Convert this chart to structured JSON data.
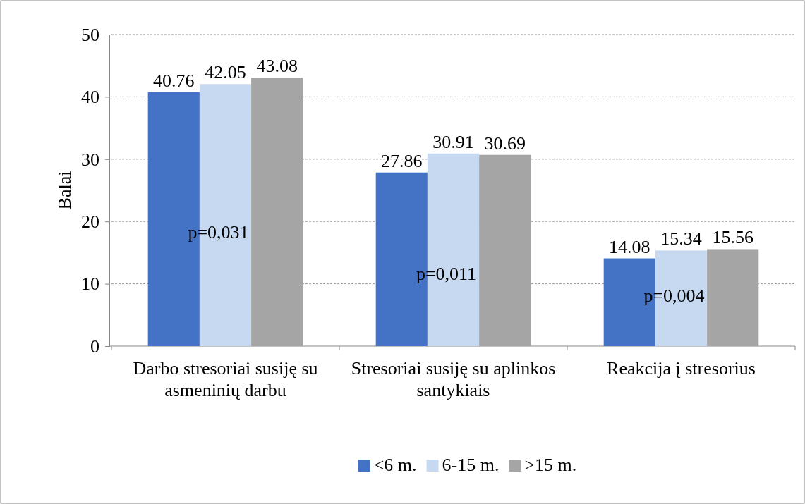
{
  "chart_data": {
    "type": "bar",
    "ylabel": "Balai",
    "categories": [
      "Darbo stresoriai susiję su asmeninių darbu",
      "Stresoriai susiję su aplinkos santykiais",
      "Reakcija į stresorius"
    ],
    "series": [
      {
        "name": "<6 m.",
        "color": "#4472c4",
        "values": [
          40.76,
          27.86,
          14.08
        ]
      },
      {
        "name": "6-15 m.",
        "color": "#c6d9f1",
        "values": [
          42.05,
          30.91,
          15.34
        ]
      },
      {
        "name": ">15 m.",
        "color": "#a5a5a5",
        "values": [
          43.08,
          30.69,
          15.56
        ]
      }
    ],
    "ylim": [
      0,
      50
    ],
    "yticks": [
      0,
      10,
      20,
      30,
      40,
      50
    ],
    "grid": "y",
    "legend": "bottom",
    "data_labels": true,
    "annotations": [
      "p=0,031",
      "p=0,011",
      "p=0,004"
    ]
  }
}
